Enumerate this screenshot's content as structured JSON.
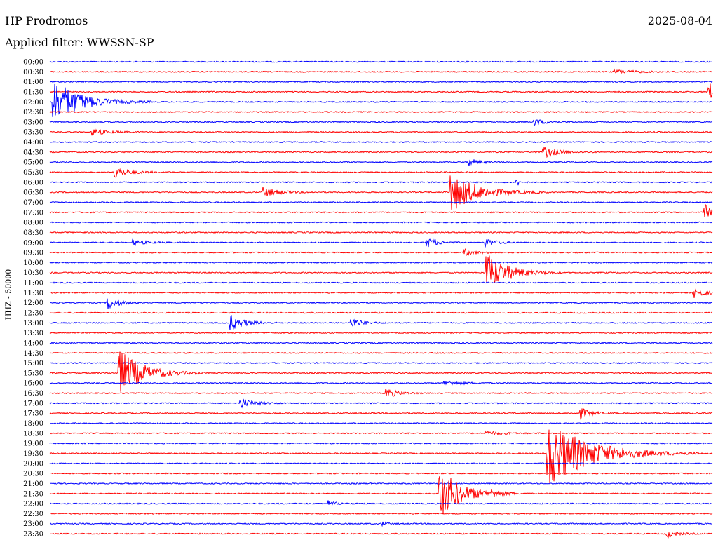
{
  "header": {
    "station": "HP Prodromos",
    "date": "2025-08-04",
    "filter": "Applied filter: WWSSN-SP",
    "channel_label": "HHZ - 50000"
  },
  "colors": {
    "even_hour": "#0000ff",
    "half_hour": "#ff0000",
    "event": "#ff0040"
  },
  "chart_data": {
    "type": "line",
    "title": "HP Prodromos",
    "subtitle": "Applied filter: WWSSN-SP",
    "ylabel": "HHZ - 50000",
    "grid": false,
    "legend": "none",
    "x_range_minutes": [
      0,
      30
    ],
    "rows": [
      "00:00",
      "00:30",
      "01:00",
      "01:30",
      "02:00",
      "02:30",
      "03:00",
      "03:30",
      "04:00",
      "04:30",
      "05:00",
      "05:30",
      "06:00",
      "06:30",
      "07:00",
      "07:30",
      "08:00",
      "08:30",
      "09:00",
      "09:30",
      "10:00",
      "10:30",
      "11:00",
      "11:30",
      "12:00",
      "12:30",
      "13:00",
      "13:30",
      "14:00",
      "14:30",
      "15:00",
      "15:30",
      "16:00",
      "16:30",
      "17:00",
      "17:30",
      "18:00",
      "18:30",
      "19:00",
      "19:30",
      "20:00",
      "20:30",
      "21:00",
      "21:30",
      "22:00",
      "22:30",
      "23:00",
      "23:30"
    ],
    "events": [
      {
        "row": "01:30",
        "t": 29.8,
        "amp": 15,
        "dur": 0.6
      },
      {
        "row": "02:00",
        "t": 0.1,
        "amp": 35,
        "dur": 1.5
      },
      {
        "row": "00:30",
        "t": 25.5,
        "amp": 3,
        "dur": 1.2
      },
      {
        "row": "03:00",
        "t": 21.9,
        "amp": 5,
        "dur": 0.6
      },
      {
        "row": "03:30",
        "t": 1.9,
        "amp": 5,
        "dur": 0.8
      },
      {
        "row": "04:30",
        "t": 22.3,
        "amp": 9,
        "dur": 0.8
      },
      {
        "row": "05:00",
        "t": 18.9,
        "amp": 6,
        "dur": 0.6
      },
      {
        "row": "05:30",
        "t": 2.9,
        "amp": 9,
        "dur": 0.8
      },
      {
        "row": "06:00",
        "t": 21.1,
        "amp": 8,
        "dur": 0.2
      },
      {
        "row": "06:30",
        "t": 18.1,
        "amp": 30,
        "dur": 1.5
      },
      {
        "row": "06:30",
        "t": 9.6,
        "amp": 8,
        "dur": 0.8
      },
      {
        "row": "07:30",
        "t": 29.6,
        "amp": 14,
        "dur": 0.4
      },
      {
        "row": "09:00",
        "t": 17.0,
        "amp": 8,
        "dur": 0.6
      },
      {
        "row": "09:00",
        "t": 19.7,
        "amp": 7,
        "dur": 0.6
      },
      {
        "row": "09:00",
        "t": 3.7,
        "amp": 4,
        "dur": 0.8
      },
      {
        "row": "09:30",
        "t": 18.7,
        "amp": 6,
        "dur": 0.6
      },
      {
        "row": "10:30",
        "t": 19.7,
        "amp": 30,
        "dur": 1.2
      },
      {
        "row": "11:30",
        "t": 29.1,
        "amp": 8,
        "dur": 0.6
      },
      {
        "row": "12:00",
        "t": 2.6,
        "amp": 10,
        "dur": 0.6
      },
      {
        "row": "13:00",
        "t": 8.1,
        "amp": 12,
        "dur": 0.8
      },
      {
        "row": "13:00",
        "t": 13.6,
        "amp": 8,
        "dur": 0.6
      },
      {
        "row": "15:30",
        "t": 3.1,
        "amp": 36,
        "dur": 1.3
      },
      {
        "row": "16:00",
        "t": 17.8,
        "amp": 4,
        "dur": 0.9
      },
      {
        "row": "16:30",
        "t": 15.2,
        "amp": 8,
        "dur": 0.6
      },
      {
        "row": "17:00",
        "t": 8.6,
        "amp": 8,
        "dur": 0.7
      },
      {
        "row": "17:30",
        "t": 24.0,
        "amp": 8,
        "dur": 0.6
      },
      {
        "row": "18:30",
        "t": 19.7,
        "amp": 3,
        "dur": 1.0
      },
      {
        "row": "19:30",
        "t": 22.5,
        "amp": 50,
        "dur": 2.3
      },
      {
        "row": "21:30",
        "t": 17.6,
        "amp": 40,
        "dur": 1.2
      },
      {
        "row": "21:30",
        "t": 20.0,
        "amp": 4,
        "dur": 0.6
      },
      {
        "row": "22:00",
        "t": 12.6,
        "amp": 4,
        "dur": 0.5
      },
      {
        "row": "23:00",
        "t": 15.0,
        "amp": 4,
        "dur": 0.3
      },
      {
        "row": "23:30",
        "t": 27.9,
        "amp": 6,
        "dur": 0.6
      }
    ]
  }
}
